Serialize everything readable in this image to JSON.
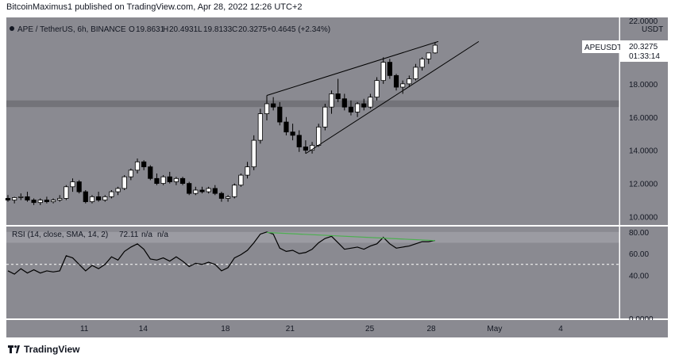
{
  "header": {
    "published_text": "BitcoinMaximus1 published on TradingView.com, Apr 28, 2022 12:26 UTC+2"
  },
  "legend": {
    "symbol": "APE / TetherUS, 6h, BINANCE",
    "o_label": "O",
    "o_value": "19.8631",
    "h_label": "H",
    "h_value": "20.4931",
    "l_label": "L",
    "l_value": "19.8133",
    "c_label": "C",
    "c_value": "20.3275",
    "change": "+0.4645 (+2.34%)"
  },
  "price_axis": {
    "currency": "USDT",
    "top_cut_label": "22.0000",
    "ticks": [
      "18.0000",
      "16.0000",
      "14.0000",
      "12.0000",
      "10.0000"
    ],
    "last_price_tag": {
      "symbol": "APEUSDT",
      "price": "20.3275",
      "countdown": "01:33:14"
    }
  },
  "rsi_pane": {
    "legend": "RSI (14, close, SMA, 14, 2)",
    "value": "72.11",
    "na1": "n/a",
    "na2": "n/a",
    "ticks": [
      "80.00",
      "60.00",
      "40.00",
      "0.0000"
    ]
  },
  "time_axis": {
    "ticks": [
      "11",
      "14",
      "18",
      "21",
      "25",
      "28",
      "May",
      "4"
    ]
  },
  "footer": {
    "brand": "TradingView"
  },
  "colors": {
    "background": "#8a8a91",
    "rsi_band": "#9b9ba2",
    "candle_up": "#ffffff",
    "candle_down": "#000000",
    "resistance_zone": "#737379",
    "divergence_line": "#4caf50",
    "rsi_line": "#000000"
  },
  "chart_data": [
    {
      "type": "candlestick",
      "title": "APE / TetherUS, 6h, BINANCE",
      "ylim": [
        9.5,
        22.0
      ],
      "resistance_zone": [
        16.6,
        17.0
      ],
      "x_ticks": [
        "11",
        "14",
        "18",
        "21",
        "25",
        "28",
        "May",
        "4"
      ],
      "series": [
        {
          "o": 11.1,
          "h": 11.3,
          "l": 10.9,
          "c": 11.0
        },
        {
          "o": 11.0,
          "h": 11.2,
          "l": 10.8,
          "c": 11.15
        },
        {
          "o": 11.15,
          "h": 11.4,
          "l": 11.0,
          "c": 11.2
        },
        {
          "o": 11.2,
          "h": 11.5,
          "l": 10.9,
          "c": 11.0
        },
        {
          "o": 11.0,
          "h": 11.1,
          "l": 10.7,
          "c": 10.85
        },
        {
          "o": 10.85,
          "h": 11.1,
          "l": 10.7,
          "c": 11.0
        },
        {
          "o": 11.0,
          "h": 11.2,
          "l": 10.8,
          "c": 10.9
        },
        {
          "o": 10.9,
          "h": 11.1,
          "l": 10.8,
          "c": 11.0
        },
        {
          "o": 11.0,
          "h": 11.3,
          "l": 10.9,
          "c": 11.1
        },
        {
          "o": 11.1,
          "h": 11.9,
          "l": 11.0,
          "c": 11.8
        },
        {
          "o": 11.8,
          "h": 12.3,
          "l": 11.5,
          "c": 12.1
        },
        {
          "o": 12.1,
          "h": 12.2,
          "l": 11.4,
          "c": 11.5
        },
        {
          "o": 11.5,
          "h": 11.6,
          "l": 10.8,
          "c": 10.9
        },
        {
          "o": 10.9,
          "h": 11.3,
          "l": 10.8,
          "c": 11.2
        },
        {
          "o": 11.2,
          "h": 11.5,
          "l": 10.9,
          "c": 11.0
        },
        {
          "o": 11.0,
          "h": 11.3,
          "l": 10.9,
          "c": 11.2
        },
        {
          "o": 11.2,
          "h": 11.6,
          "l": 11.1,
          "c": 11.5
        },
        {
          "o": 11.5,
          "h": 11.8,
          "l": 11.3,
          "c": 11.7
        },
        {
          "o": 11.7,
          "h": 12.5,
          "l": 11.6,
          "c": 12.4
        },
        {
          "o": 12.4,
          "h": 12.9,
          "l": 12.2,
          "c": 12.8
        },
        {
          "o": 12.8,
          "h": 13.5,
          "l": 12.6,
          "c": 13.3
        },
        {
          "o": 13.3,
          "h": 13.4,
          "l": 12.8,
          "c": 13.0
        },
        {
          "o": 13.0,
          "h": 13.1,
          "l": 12.2,
          "c": 12.3
        },
        {
          "o": 12.3,
          "h": 12.6,
          "l": 11.9,
          "c": 12.0
        },
        {
          "o": 12.0,
          "h": 12.5,
          "l": 11.9,
          "c": 12.4
        },
        {
          "o": 12.4,
          "h": 12.7,
          "l": 12.0,
          "c": 12.1
        },
        {
          "o": 12.1,
          "h": 12.4,
          "l": 11.9,
          "c": 12.3
        },
        {
          "o": 12.3,
          "h": 12.4,
          "l": 11.9,
          "c": 12.0
        },
        {
          "o": 12.0,
          "h": 12.1,
          "l": 11.3,
          "c": 11.4
        },
        {
          "o": 11.4,
          "h": 11.8,
          "l": 11.3,
          "c": 11.6
        },
        {
          "o": 11.6,
          "h": 11.8,
          "l": 11.4,
          "c": 11.5
        },
        {
          "o": 11.5,
          "h": 11.8,
          "l": 11.4,
          "c": 11.7
        },
        {
          "o": 11.7,
          "h": 11.9,
          "l": 11.3,
          "c": 11.4
        },
        {
          "o": 11.4,
          "h": 11.5,
          "l": 10.9,
          "c": 11.1
        },
        {
          "o": 11.1,
          "h": 11.3,
          "l": 10.9,
          "c": 11.2
        },
        {
          "o": 11.2,
          "h": 12.0,
          "l": 11.1,
          "c": 11.9
        },
        {
          "o": 11.9,
          "h": 12.6,
          "l": 11.8,
          "c": 12.5
        },
        {
          "o": 12.5,
          "h": 13.3,
          "l": 12.3,
          "c": 13.0
        },
        {
          "o": 13.0,
          "h": 14.9,
          "l": 12.8,
          "c": 14.6
        },
        {
          "o": 14.6,
          "h": 16.5,
          "l": 14.4,
          "c": 16.2
        },
        {
          "o": 16.2,
          "h": 17.3,
          "l": 15.8,
          "c": 16.8
        },
        {
          "o": 16.8,
          "h": 17.2,
          "l": 16.4,
          "c": 16.6
        },
        {
          "o": 16.6,
          "h": 16.9,
          "l": 15.5,
          "c": 15.7
        },
        {
          "o": 15.7,
          "h": 16.0,
          "l": 14.9,
          "c": 15.1
        },
        {
          "o": 15.1,
          "h": 15.6,
          "l": 14.6,
          "c": 14.9
        },
        {
          "o": 14.9,
          "h": 15.2,
          "l": 13.9,
          "c": 14.2
        },
        {
          "o": 14.2,
          "h": 14.6,
          "l": 13.8,
          "c": 14.0
        },
        {
          "o": 14.0,
          "h": 14.5,
          "l": 13.8,
          "c": 14.3
        },
        {
          "o": 14.3,
          "h": 15.6,
          "l": 14.2,
          "c": 15.4
        },
        {
          "o": 15.4,
          "h": 16.8,
          "l": 15.2,
          "c": 16.6
        },
        {
          "o": 16.6,
          "h": 17.6,
          "l": 16.2,
          "c": 17.4
        },
        {
          "o": 17.4,
          "h": 18.3,
          "l": 16.9,
          "c": 17.1
        },
        {
          "o": 17.1,
          "h": 17.4,
          "l": 16.4,
          "c": 16.6
        },
        {
          "o": 16.6,
          "h": 17.0,
          "l": 16.1,
          "c": 16.3
        },
        {
          "o": 16.3,
          "h": 16.9,
          "l": 16.0,
          "c": 16.8
        },
        {
          "o": 16.8,
          "h": 17.1,
          "l": 16.4,
          "c": 16.6
        },
        {
          "o": 16.6,
          "h": 17.4,
          "l": 16.5,
          "c": 17.2
        },
        {
          "o": 17.2,
          "h": 18.4,
          "l": 17.0,
          "c": 18.2
        },
        {
          "o": 18.2,
          "h": 19.6,
          "l": 18.0,
          "c": 19.3
        },
        {
          "o": 19.3,
          "h": 19.5,
          "l": 18.3,
          "c": 18.5
        },
        {
          "o": 18.5,
          "h": 18.6,
          "l": 17.6,
          "c": 17.8
        },
        {
          "o": 17.8,
          "h": 18.2,
          "l": 17.4,
          "c": 18.0
        },
        {
          "o": 18.0,
          "h": 18.5,
          "l": 17.8,
          "c": 18.3
        },
        {
          "o": 18.3,
          "h": 19.2,
          "l": 18.2,
          "c": 19.0
        },
        {
          "o": 19.0,
          "h": 19.6,
          "l": 18.8,
          "c": 19.5
        },
        {
          "o": 19.5,
          "h": 19.8,
          "l": 19.2,
          "c": 19.86
        },
        {
          "o": 19.8631,
          "h": 20.4931,
          "l": 19.8133,
          "c": 20.3275
        }
      ]
    },
    {
      "type": "line",
      "title": "RSI (14, close, SMA, 14, 2)",
      "ylim": [
        0,
        85
      ],
      "overbought_band": [
        70,
        80
      ],
      "midline": 50,
      "series": [
        {
          "name": "RSI",
          "values": [
            44,
            41,
            46,
            42,
            45,
            42,
            44,
            43,
            44,
            58,
            56,
            50,
            44,
            49,
            46,
            50,
            57,
            54,
            62,
            66,
            69,
            64,
            55,
            54,
            56,
            53,
            57,
            53,
            48,
            51,
            50,
            52,
            50,
            44,
            47,
            56,
            59,
            63,
            70,
            78,
            80,
            78,
            65,
            62,
            63,
            60,
            61,
            64,
            70,
            74,
            76,
            70,
            64,
            65,
            66,
            64,
            67,
            69,
            75,
            69,
            65,
            66,
            67,
            69,
            71,
            71,
            72.11
          ]
        }
      ],
      "divergence_line": {
        "from": 79.5,
        "to": 72
      }
    }
  ]
}
